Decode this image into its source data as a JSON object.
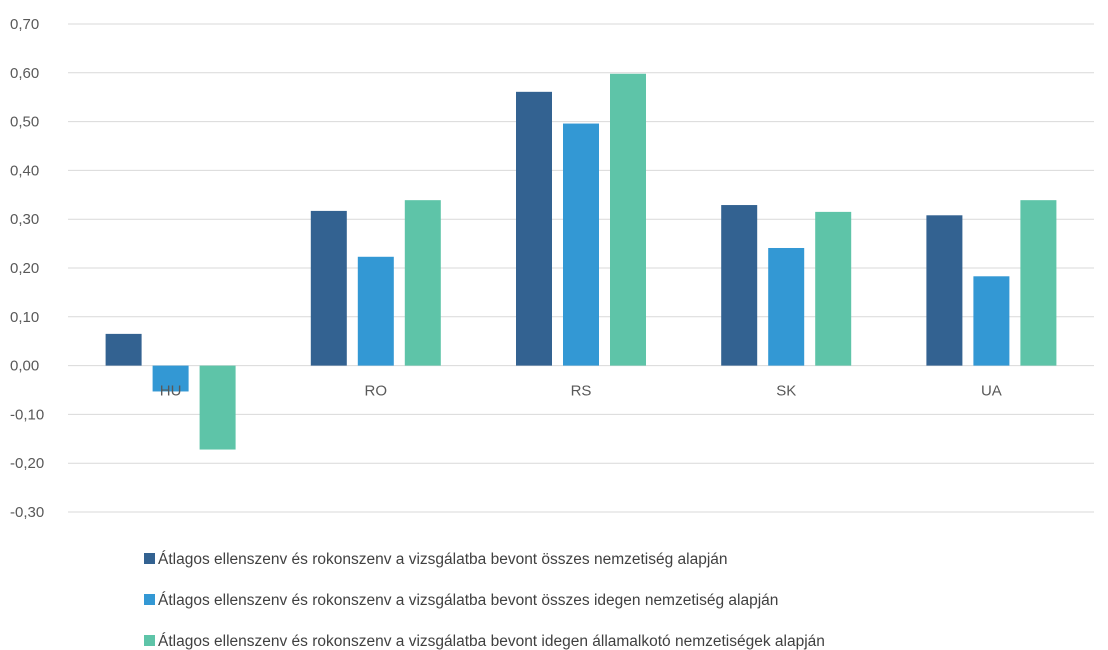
{
  "chart_data": {
    "type": "bar",
    "categories": [
      "HU",
      "RO",
      "RS",
      "SK",
      "UA"
    ],
    "series": [
      {
        "name": "Átlagos ellenszenv és rokonszenv a vizsgálatba bevont összes nemzetiség alapján",
        "color": "#336291",
        "values": [
          0.065,
          0.317,
          0.561,
          0.329,
          0.308
        ]
      },
      {
        "name": "Átlagos ellenszenv és rokonszenv a vizsgálatba bevont összes idegen nemzetiség alapján",
        "color": "#3398d4",
        "values": [
          -0.053,
          0.223,
          0.496,
          0.241,
          0.183
        ]
      },
      {
        "name": "Átlagos ellenszenv és rokonszenv a vizsgálatba bevont idegen államalkotó nemzetiségek alapján",
        "color": "#5ec4a8",
        "values": [
          -0.172,
          0.339,
          0.598,
          0.315,
          0.339
        ]
      }
    ],
    "yticks": [
      "0,70",
      "0,60",
      "0,50",
      "0,40",
      "0,30",
      "0,20",
      "0,10",
      "0,00",
      "-0,10",
      "-0,20",
      "-0,30"
    ],
    "ylim": [
      -0.3,
      0.7
    ],
    "grid": true,
    "legend_position": "bottom",
    "title": "",
    "xlabel": "",
    "ylabel": ""
  }
}
